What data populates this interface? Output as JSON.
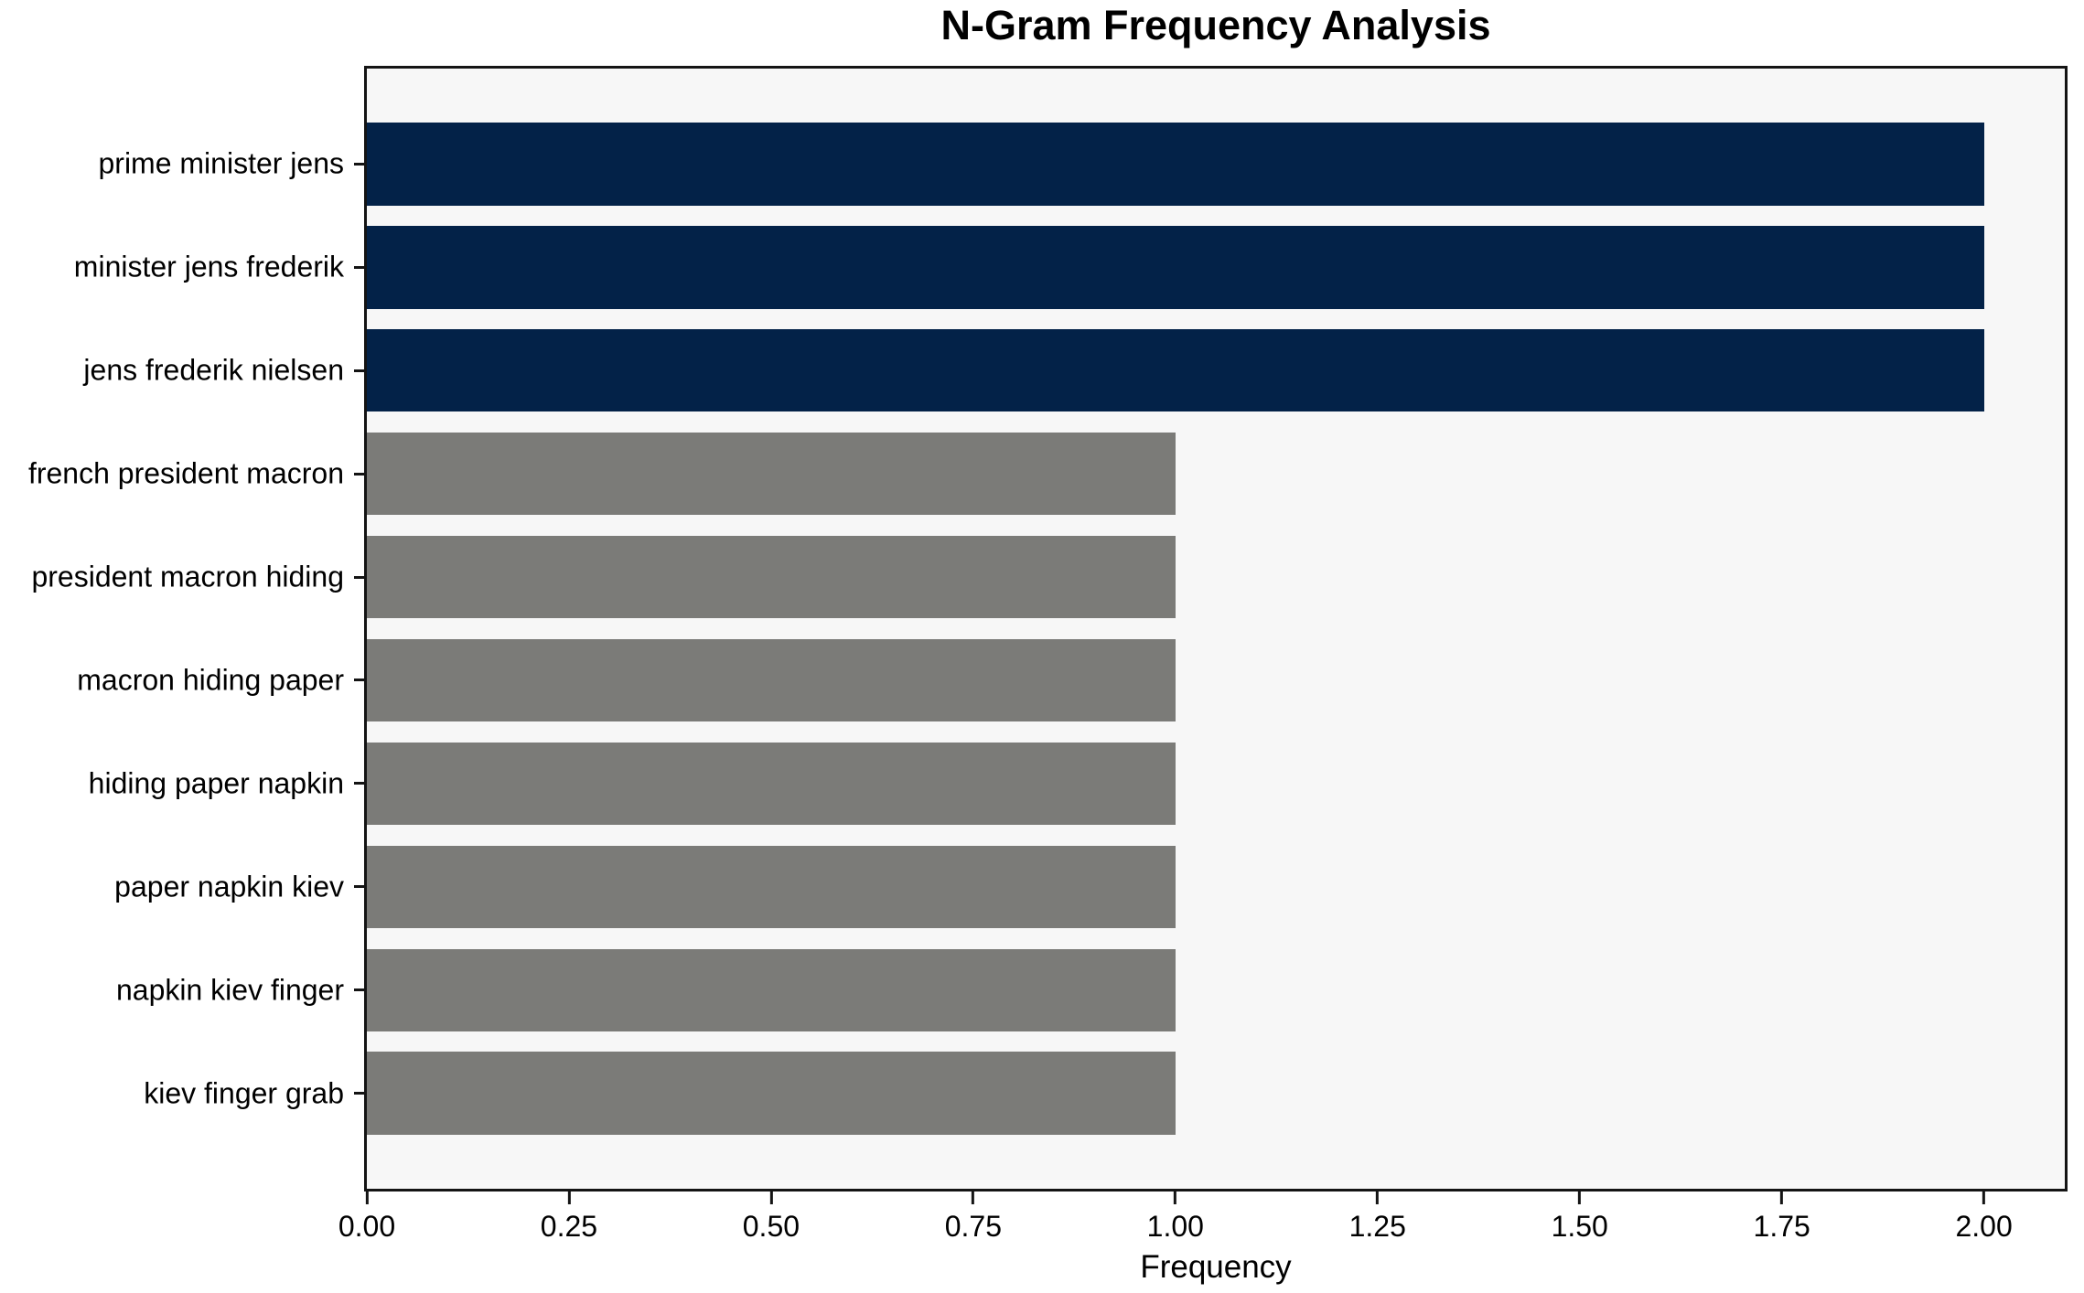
{
  "chart_data": {
    "type": "bar",
    "orientation": "horizontal",
    "title": "N-Gram Frequency Analysis",
    "xlabel": "Frequency",
    "ylabel": "",
    "categories": [
      "prime minister jens",
      "minister jens frederik",
      "jens frederik nielsen",
      "french president macron",
      "president macron hiding",
      "macron hiding paper",
      "hiding paper napkin",
      "paper napkin kiev",
      "napkin kiev finger",
      "kiev finger grab"
    ],
    "values": [
      2,
      2,
      2,
      1,
      1,
      1,
      1,
      1,
      1,
      1
    ],
    "bar_colors": [
      "#032248",
      "#032248",
      "#032248",
      "#7b7b78",
      "#7b7b78",
      "#7b7b78",
      "#7b7b78",
      "#7b7b78",
      "#7b7b78",
      "#7b7b78"
    ],
    "xlim": [
      0,
      2.1
    ],
    "x_ticks": [
      0,
      0.25,
      0.5,
      0.75,
      1.0,
      1.25,
      1.5,
      1.75,
      2.0
    ],
    "x_tick_labels": [
      "0.00",
      "0.25",
      "0.50",
      "0.75",
      "1.00",
      "1.25",
      "1.50",
      "1.75",
      "2.00"
    ],
    "grid": false,
    "legend": null,
    "plot_background": "#f7f7f7",
    "figure_background": "#ffffff",
    "highlight_color": "#032248",
    "base_color": "#7b7b78",
    "spine_color": "#141414"
  }
}
